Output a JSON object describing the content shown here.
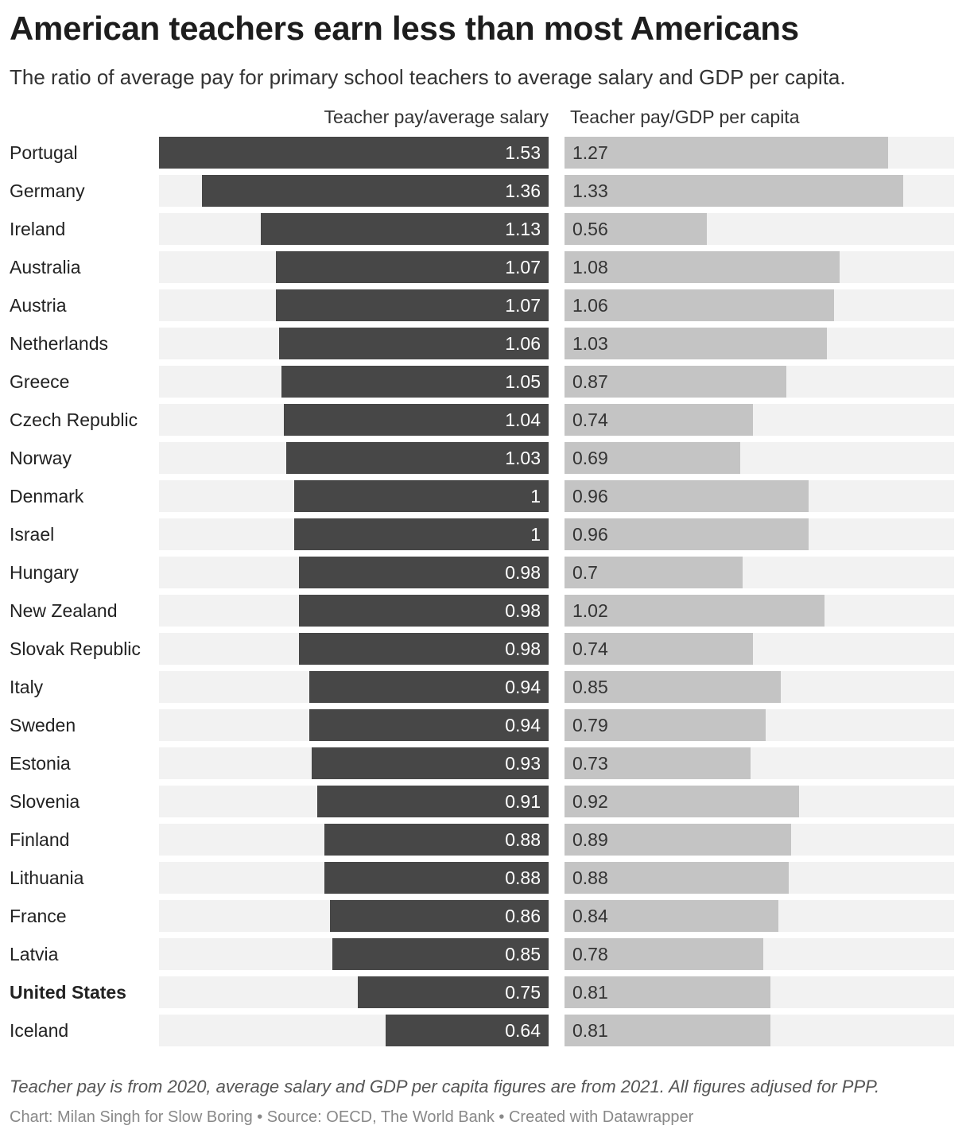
{
  "title": "American teachers earn less than most Americans",
  "subtitle": "The ratio of average pay for primary school teachers to average salary and GDP per capita.",
  "note": "Teacher pay is from 2020, average salary and GDP per capita figures are from 2021. All figures adjused for PPP.",
  "credit": "Chart: Milan Singh for Slow Boring • Source: OECD, The World Bank • Created with Datawrapper",
  "colors": {
    "left_bar": "#474747",
    "right_bar": "#c4c4c4",
    "track": "#f2f2f2"
  },
  "chart_data": {
    "type": "bar",
    "orientation": "horizontal",
    "highlight_category": "United States",
    "categories": [
      "Portugal",
      "Germany",
      "Ireland",
      "Australia",
      "Austria",
      "Netherlands",
      "Greece",
      "Czech Republic",
      "Norway",
      "Denmark",
      "Israel",
      "Hungary",
      "New Zealand",
      "Slovak Republic",
      "Italy",
      "Sweden",
      "Estonia",
      "Slovenia",
      "Finland",
      "Lithuania",
      "France",
      "Latvia",
      "United States",
      "Iceland"
    ],
    "series": [
      {
        "name": "Teacher pay/average salary",
        "xlim": [
          0,
          1.53
        ],
        "values": [
          1.53,
          1.36,
          1.13,
          1.07,
          1.07,
          1.06,
          1.05,
          1.04,
          1.03,
          1,
          1,
          0.98,
          0.98,
          0.98,
          0.94,
          0.94,
          0.93,
          0.91,
          0.88,
          0.88,
          0.86,
          0.85,
          0.75,
          0.64
        ]
      },
      {
        "name": "Teacher pay/GDP per capita",
        "xlim": [
          0,
          1.53
        ],
        "values": [
          1.27,
          1.33,
          0.56,
          1.08,
          1.06,
          1.03,
          0.87,
          0.74,
          0.69,
          0.96,
          0.96,
          0.7,
          1.02,
          0.74,
          0.85,
          0.79,
          0.73,
          0.92,
          0.89,
          0.88,
          0.84,
          0.78,
          0.81,
          0.81
        ]
      }
    ]
  }
}
